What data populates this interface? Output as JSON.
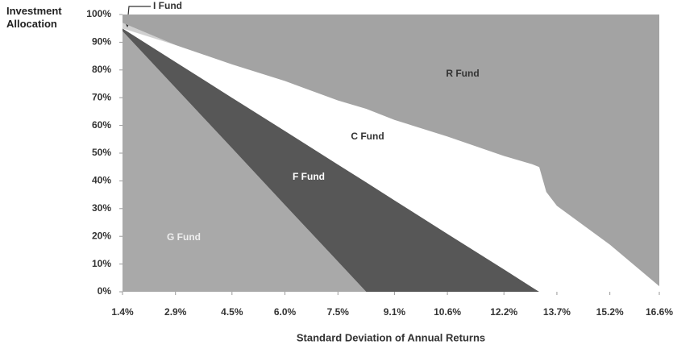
{
  "chart_data": {
    "type": "stacked_area",
    "y_label": "Investment Allocation",
    "x_label": "Standard Deviation of Annual Returns",
    "x": [
      1.4,
      2.9,
      4.5,
      6.0,
      7.5,
      8.3,
      9.1,
      10.6,
      12.2,
      13.0,
      13.2,
      13.4,
      13.7,
      15.2,
      16.6
    ],
    "series": [
      {
        "name": "G Fund",
        "color": "#a9a9a9",
        "values": [
          94,
          73.6,
          51.8,
          31.3,
          10.9,
          0,
          0,
          0,
          0,
          0,
          0,
          0,
          0,
          0,
          0
        ]
      },
      {
        "name": "F Fund",
        "color": "#575757",
        "values": [
          1,
          9.3,
          18.2,
          26.7,
          35,
          39.5,
          33,
          20.9,
          8.1,
          1.6,
          0,
          0,
          0,
          0,
          0
        ]
      },
      {
        "name": "C Fund",
        "color": "#ffffff",
        "values": [
          0,
          6.1,
          12,
          18,
          23.1,
          26.5,
          29,
          35.1,
          40.9,
          44.4,
          45,
          36,
          31,
          17,
          2
        ]
      },
      {
        "name": "I Fund",
        "color": "#d0d0d0",
        "values": [
          2,
          0,
          0,
          0,
          0,
          0,
          0,
          0,
          0,
          0,
          0,
          0,
          0,
          0,
          0
        ]
      },
      {
        "name": "R Fund",
        "color": "#a3a3a3",
        "values": [
          3,
          11,
          18,
          24,
          31,
          34,
          38,
          44,
          51,
          54,
          55,
          64,
          69,
          83,
          98
        ]
      }
    ],
    "xlim": [
      1.4,
      16.6
    ],
    "xticks": [
      {
        "value": 1.4,
        "label": "1.4%"
      },
      {
        "value": 2.9,
        "label": "2.9%"
      },
      {
        "value": 4.5,
        "label": "4.5%"
      },
      {
        "value": 6.0,
        "label": "6.0%"
      },
      {
        "value": 7.5,
        "label": "7.5%"
      },
      {
        "value": 9.1,
        "label": "9.1%"
      },
      {
        "value": 10.6,
        "label": "10.6%"
      },
      {
        "value": 12.2,
        "label": "12.2%"
      },
      {
        "value": 13.7,
        "label": "13.7%"
      },
      {
        "value": 15.2,
        "label": "15.2%"
      },
      {
        "value": 16.6,
        "label": "16.6%"
      }
    ],
    "ylim": [
      0,
      100
    ],
    "yticks": [
      {
        "value": 0,
        "label": "0%"
      },
      {
        "value": 10,
        "label": "10%"
      },
      {
        "value": 20,
        "label": "20%"
      },
      {
        "value": 30,
        "label": "30%"
      },
      {
        "value": 40,
        "label": "40%"
      },
      {
        "value": 50,
        "label": "50%"
      },
      {
        "value": 60,
        "label": "60%"
      },
      {
        "value": 70,
        "label": "70%"
      },
      {
        "value": 80,
        "label": "80%"
      },
      {
        "value": 90,
        "label": "90%"
      },
      {
        "value": 100,
        "label": "100%"
      }
    ]
  }
}
